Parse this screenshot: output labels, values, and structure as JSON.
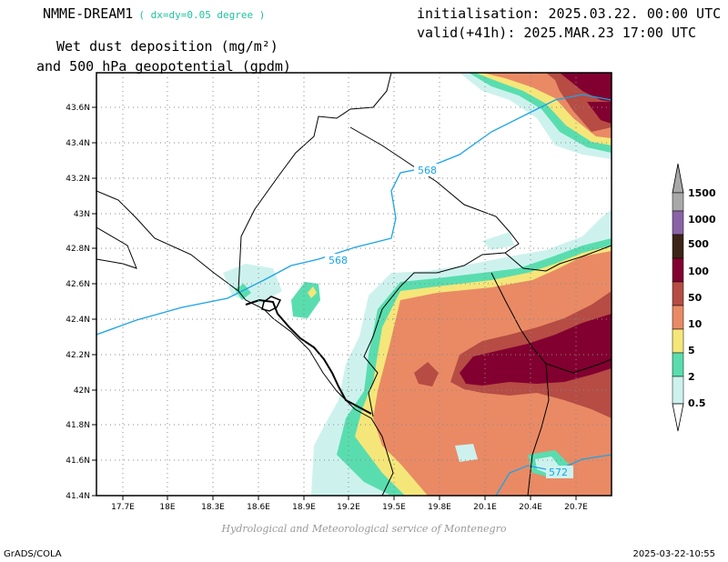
{
  "header": {
    "model_name": "NMME-DREAM1",
    "resolution": "( dx=dy=0.05 degree )",
    "initialisation": "initialisation: 2025.03.22. 00:00 UTC",
    "valid": "valid(+41h): 2025.MAR.23 17:00 UTC",
    "variable_line1": "Wet dust deposition (mg/m²)",
    "variable_line2": "and 500 hPa geopotential (gpdm)"
  },
  "axes": {
    "lon_labels": [
      "17.7E",
      "18E",
      "18.3E",
      "18.6E",
      "18.9E",
      "19.2E",
      "19.5E",
      "19.8E",
      "20.1E",
      "20.4E",
      "20.7E"
    ],
    "lat_labels": [
      "43.6N",
      "43.4N",
      "43.2N",
      "43N",
      "42.8N",
      "42.6N",
      "42.4N",
      "42.2N",
      "42N",
      "41.8N",
      "41.6N",
      "41.4N"
    ]
  },
  "legend": {
    "levels": [
      "0.5",
      "2",
      "5",
      "10",
      "50",
      "100",
      "500",
      "1000",
      "1500"
    ],
    "colors": [
      "#cdf2ee",
      "#59ddaf",
      "#f5e67a",
      "#e98a65",
      "#b64c44",
      "#82002f",
      "#3c2418",
      "#8a63a6",
      "#a8a8a8"
    ]
  },
  "contours": {
    "labels": [
      "568",
      "568",
      "572"
    ],
    "color": "#1aa3e8"
  },
  "footer": {
    "credit": "Hydrological and Meteorological service of Montenegro",
    "software": "GrADS/COLA",
    "datestamp": "2025-03-22-10:55"
  },
  "icons": [
    "legend-top-arrow-icon",
    "legend-bottom-arrow-icon"
  ]
}
